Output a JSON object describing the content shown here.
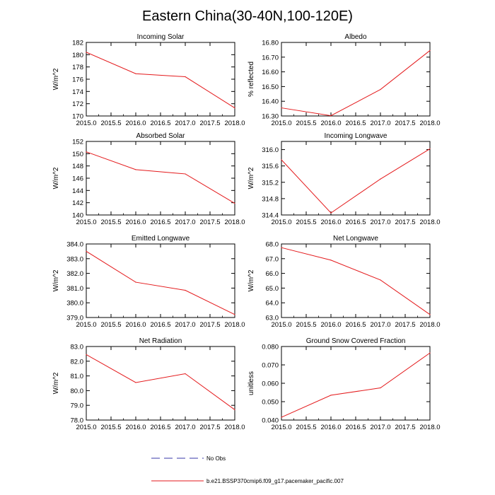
{
  "figure": {
    "title": "Eastern China(30-40N,100-120E)",
    "legend": [
      {
        "label": "No Obs",
        "style": "dashed",
        "color": "#3a3aa8"
      },
      {
        "label": "b.e21.BSSP370cmip6.f09_g17.pacemaker_pacific.007",
        "style": "solid",
        "color": "#e41a1c"
      }
    ]
  },
  "colors": {
    "series": "#e41a1c",
    "obs": "#3a3aa8",
    "axis": "#000000"
  },
  "chart_data": [
    {
      "type": "line",
      "title": "Incoming Solar",
      "ylabel": "W/m^2",
      "xlabel": "",
      "x": [
        2015.0,
        2016.0,
        2017.0,
        2018.0
      ],
      "series": [
        {
          "name": "b.e21.BSSP370cmip6.f09_g17.pacemaker_pacific.007",
          "values": [
            180.4,
            176.9,
            176.4,
            171.3
          ]
        }
      ],
      "xlim": [
        2015.0,
        2018.0
      ],
      "ylim": [
        170,
        182
      ],
      "xticks": [
        "2015.0",
        "2015.5",
        "2016.0",
        "2016.5",
        "2017.0",
        "2017.5",
        "2018.0"
      ],
      "yticks": [
        "170",
        "172",
        "174",
        "176",
        "178",
        "180",
        "182"
      ]
    },
    {
      "type": "line",
      "title": "Albedo",
      "ylabel": "% reflected",
      "xlabel": "",
      "x": [
        2015.0,
        2016.0,
        2017.0,
        2018.0
      ],
      "series": [
        {
          "name": "b.e21.BSSP370cmip6.f09_g17.pacemaker_pacific.007",
          "values": [
            16.355,
            16.302,
            16.48,
            16.745
          ]
        }
      ],
      "xlim": [
        2015.0,
        2018.0
      ],
      "ylim": [
        16.3,
        16.8
      ],
      "xticks": [
        "2015.0",
        "2015.5",
        "2016.0",
        "2016.5",
        "2017.0",
        "2017.5",
        "2018.0"
      ],
      "yticks": [
        "16.30",
        "16.40",
        "16.50",
        "16.60",
        "16.70",
        "16.80"
      ]
    },
    {
      "type": "line",
      "title": "Absorbed Solar",
      "ylabel": "W/m^2",
      "xlabel": "",
      "x": [
        2015.0,
        2016.0,
        2017.0,
        2018.0
      ],
      "series": [
        {
          "name": "b.e21.BSSP370cmip6.f09_g17.pacemaker_pacific.007",
          "values": [
            150.3,
            147.4,
            146.7,
            141.9
          ]
        }
      ],
      "xlim": [
        2015.0,
        2018.0
      ],
      "ylim": [
        140,
        152
      ],
      "xticks": [
        "2015.0",
        "2015.5",
        "2016.0",
        "2016.5",
        "2017.0",
        "2017.5",
        "2018.0"
      ],
      "yticks": [
        "140",
        "142",
        "144",
        "146",
        "148",
        "150",
        "152"
      ]
    },
    {
      "type": "line",
      "title": "Incoming Longwave",
      "ylabel": "W/m^2",
      "xlabel": "",
      "x": [
        2015.0,
        2016.0,
        2017.0,
        2018.0
      ],
      "series": [
        {
          "name": "b.e21.BSSP370cmip6.f09_g17.pacemaker_pacific.007",
          "values": [
            315.75,
            314.45,
            315.28,
            316.02
          ]
        }
      ],
      "xlim": [
        2015.0,
        2018.0
      ],
      "ylim": [
        314.4,
        316.2
      ],
      "xticks": [
        "2015.0",
        "2015.5",
        "2016.0",
        "2016.5",
        "2017.0",
        "2017.5",
        "2018.0"
      ],
      "yticks": [
        "314.4",
        "314.8",
        "315.2",
        "315.6",
        "316.0"
      ]
    },
    {
      "type": "line",
      "title": "Emitted Longwave",
      "ylabel": "W/m^2",
      "xlabel": "",
      "x": [
        2015.0,
        2016.0,
        2017.0,
        2018.0
      ],
      "series": [
        {
          "name": "b.e21.BSSP370cmip6.f09_g17.pacemaker_pacific.007",
          "values": [
            383.5,
            381.4,
            380.85,
            379.2
          ]
        }
      ],
      "xlim": [
        2015.0,
        2018.0
      ],
      "ylim": [
        379.0,
        384.0
      ],
      "xticks": [
        "2015.0",
        "2015.5",
        "2016.0",
        "2016.5",
        "2017.0",
        "2017.5",
        "2018.0"
      ],
      "yticks": [
        "379.0",
        "380.0",
        "381.0",
        "382.0",
        "383.0",
        "384.0"
      ]
    },
    {
      "type": "line",
      "title": "Net Longwave",
      "ylabel": "W/m^2",
      "xlabel": "",
      "x": [
        2015.0,
        2016.0,
        2017.0,
        2018.0
      ],
      "series": [
        {
          "name": "b.e21.BSSP370cmip6.f09_g17.pacemaker_pacific.007",
          "values": [
            67.75,
            66.9,
            65.55,
            63.2
          ]
        }
      ],
      "xlim": [
        2015.0,
        2018.0
      ],
      "ylim": [
        63.0,
        68.0
      ],
      "xticks": [
        "2015.0",
        "2015.5",
        "2016.0",
        "2016.5",
        "2017.0",
        "2017.5",
        "2018.0"
      ],
      "yticks": [
        "63.0",
        "64.0",
        "65.0",
        "66.0",
        "67.0",
        "68.0"
      ]
    },
    {
      "type": "line",
      "title": "Net Radiation",
      "ylabel": "W/m^2",
      "xlabel": "",
      "x": [
        2015.0,
        2016.0,
        2017.0,
        2018.0
      ],
      "series": [
        {
          "name": "b.e21.BSSP370cmip6.f09_g17.pacemaker_pacific.007",
          "values": [
            82.45,
            80.55,
            81.15,
            78.7
          ]
        }
      ],
      "xlim": [
        2015.0,
        2018.0
      ],
      "ylim": [
        78.0,
        83.0
      ],
      "xticks": [
        "2015.0",
        "2015.5",
        "2016.0",
        "2016.5",
        "2017.0",
        "2017.5",
        "2018.0"
      ],
      "yticks": [
        "78.0",
        "79.0",
        "80.0",
        "81.0",
        "82.0",
        "83.0"
      ]
    },
    {
      "type": "line",
      "title": "Ground Snow Covered Fraction",
      "ylabel": "unitless",
      "xlabel": "",
      "x": [
        2015.0,
        2016.0,
        2017.0,
        2018.0
      ],
      "series": [
        {
          "name": "b.e21.BSSP370cmip6.f09_g17.pacemaker_pacific.007",
          "values": [
            0.0415,
            0.0535,
            0.0575,
            0.0765
          ]
        }
      ],
      "xlim": [
        2015.0,
        2018.0
      ],
      "ylim": [
        0.04,
        0.08
      ],
      "xticks": [
        "2015.0",
        "2015.5",
        "2016.0",
        "2016.5",
        "2017.0",
        "2017.5",
        "2018.0"
      ],
      "yticks": [
        "0.040",
        "0.050",
        "0.060",
        "0.070",
        "0.080"
      ]
    }
  ]
}
